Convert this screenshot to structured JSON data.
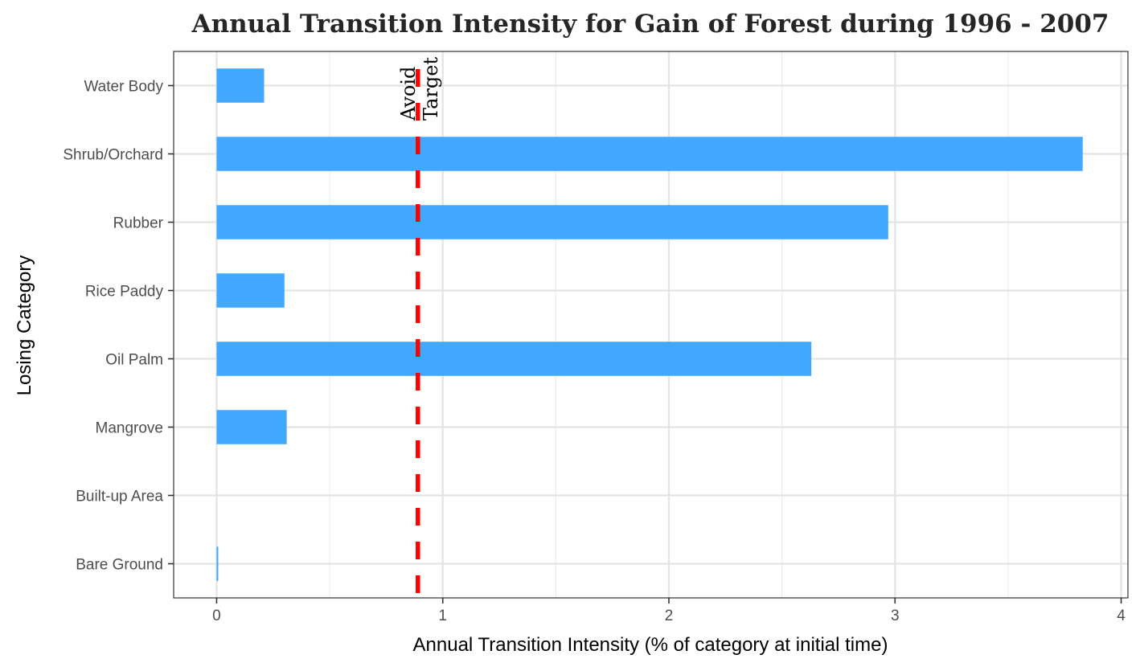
{
  "chart_data": {
    "type": "bar",
    "orientation": "horizontal",
    "title": "Annual Transition Intensity for Gain of  Forest during 1996 - 2007",
    "xlabel": "Annual Transition Intensity (% of category at initial time)",
    "ylabel": "Losing Category",
    "categories": [
      "Water Body",
      "Shrub/Orchard",
      "Rubber",
      "Rice Paddy",
      "Oil Palm",
      "Mangrove",
      "Built-up Area",
      "Bare Ground"
    ],
    "values": [
      0.21,
      3.83,
      2.97,
      0.3,
      2.63,
      0.31,
      0,
      0.005
    ],
    "xlim": [
      -0.19,
      4.03
    ],
    "xticks": [
      "0",
      "1",
      "2",
      "3",
      "4"
    ],
    "grid": true,
    "bar_color": "#42a8ff",
    "reference_line": {
      "value": 0.89,
      "color": "#ff0000",
      "style": "dashed",
      "label_left": "Avoid",
      "label_right": "Target"
    }
  }
}
